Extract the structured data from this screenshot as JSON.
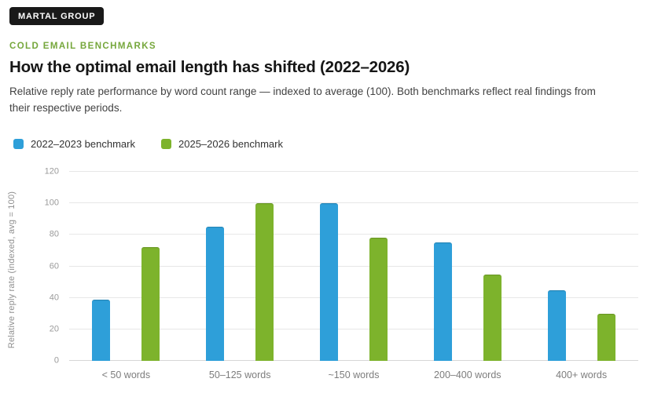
{
  "badge": "MARTAL GROUP",
  "eyebrow": "COLD EMAIL BENCHMARKS",
  "title": "How the optimal email length has shifted (2022–2026)",
  "subtitle": "Relative reply rate performance by word count range — indexed to average (100). Both benchmarks reflect real findings from their respective periods.",
  "colors": {
    "series_blue": "#2E9FD9",
    "series_green": "#7DB32C",
    "eyebrow_green": "#76A73C",
    "badge_bg": "#191919",
    "gridline": "#E7E7E7"
  },
  "chart_data": {
    "type": "bar",
    "categories": [
      "< 50 words",
      "50–125 words",
      "~150 words",
      "200–400 words",
      "400+ words"
    ],
    "series": [
      {
        "name": "2022–2023 benchmark",
        "color": "#2E9FD9",
        "values": [
          39,
          85,
          100,
          75,
          45
        ]
      },
      {
        "name": "2025–2026 benchmark",
        "color": "#7DB32C",
        "values": [
          72,
          100,
          78,
          55,
          30
        ]
      }
    ],
    "title": "How the optimal email length has shifted (2022–2026)",
    "xlabel": "",
    "ylabel": "Relative reply rate (indexed, avg = 100)",
    "ylim": [
      0,
      120
    ],
    "yticks": [
      0,
      20,
      40,
      60,
      80,
      100,
      120
    ],
    "grid": true,
    "legend_position": "top-left"
  }
}
